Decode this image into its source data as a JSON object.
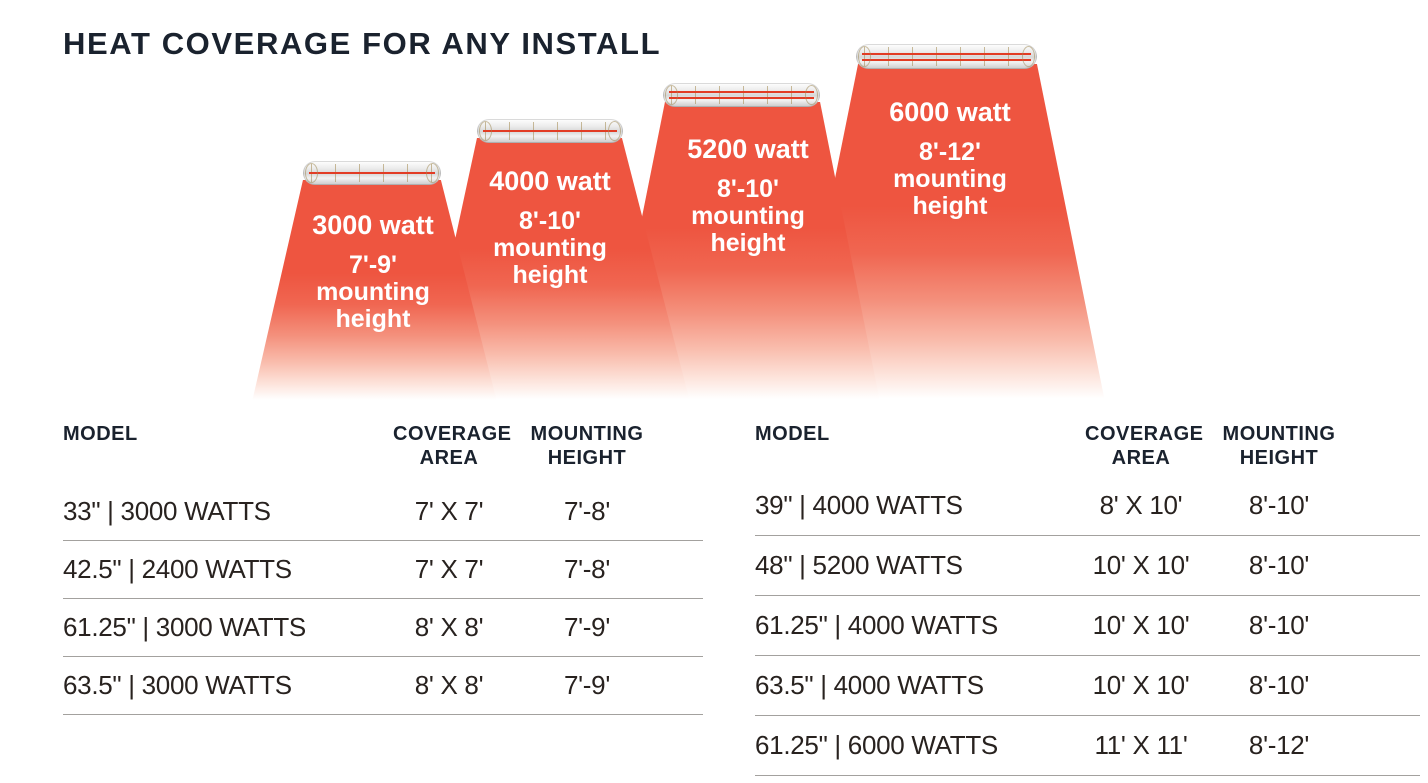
{
  "title": "HEAT COVERAGE FOR ANY INSTALL",
  "colors": {
    "heat_red": "#EE5540",
    "element_red": "#E23C24",
    "title_navy": "#1A222E",
    "table_text": "#28221F",
    "divider_gray": "#A3A19E"
  },
  "icons": {
    "heater_bar": "heater-bar-icon"
  },
  "diagram": {
    "units": [
      {
        "watt": "3000 watt",
        "mount": [
          "7'-9'",
          "mounting",
          "height"
        ]
      },
      {
        "watt": "4000 watt",
        "mount": [
          "8'-10'",
          "mounting",
          "height"
        ]
      },
      {
        "watt": "5200 watt",
        "mount": [
          "8'-10'",
          "mounting",
          "height"
        ]
      },
      {
        "watt": "6000 watt",
        "mount": [
          "8'-12'",
          "mounting",
          "height"
        ]
      }
    ]
  },
  "tables": [
    {
      "headers": {
        "model": "MODEL",
        "coverage": [
          "COVERAGE",
          "AREA"
        ],
        "mounting": [
          "MOUNTING",
          "HEIGHT"
        ]
      },
      "rows": [
        {
          "model": "33\" | 3000 WATTS",
          "coverage": "7' X 7'",
          "mounting": "7'-8'"
        },
        {
          "model": "42.5\" | 2400 WATTS",
          "coverage": "7' X 7'",
          "mounting": "7'-8'"
        },
        {
          "model": "61.25\" | 3000 WATTS",
          "coverage": "8' X 8'",
          "mounting": "7'-9'"
        },
        {
          "model": "63.5\" | 3000 WATTS",
          "coverage": "8' X 8'",
          "mounting": "7'-9'"
        }
      ]
    },
    {
      "headers": {
        "model": "MODEL",
        "coverage": [
          "COVERAGE",
          "AREA"
        ],
        "mounting": [
          "MOUNTING",
          "HEIGHT"
        ]
      },
      "rows": [
        {
          "model": "39\" | 4000 WATTS",
          "coverage": "8' X 10'",
          "mounting": "8'-10'"
        },
        {
          "model": "48\" | 5200 WATTS",
          "coverage": "10' X 10'",
          "mounting": "8'-10'"
        },
        {
          "model": "61.25\" | 4000 WATTS",
          "coverage": "10' X 10'",
          "mounting": "8'-10'"
        },
        {
          "model": "63.5\" | 4000 WATTS",
          "coverage": "10' X 10'",
          "mounting": "8'-10'"
        },
        {
          "model": "61.25\" | 6000 WATTS",
          "coverage": "11' X 11'",
          "mounting": "8'-12'"
        }
      ]
    }
  ]
}
